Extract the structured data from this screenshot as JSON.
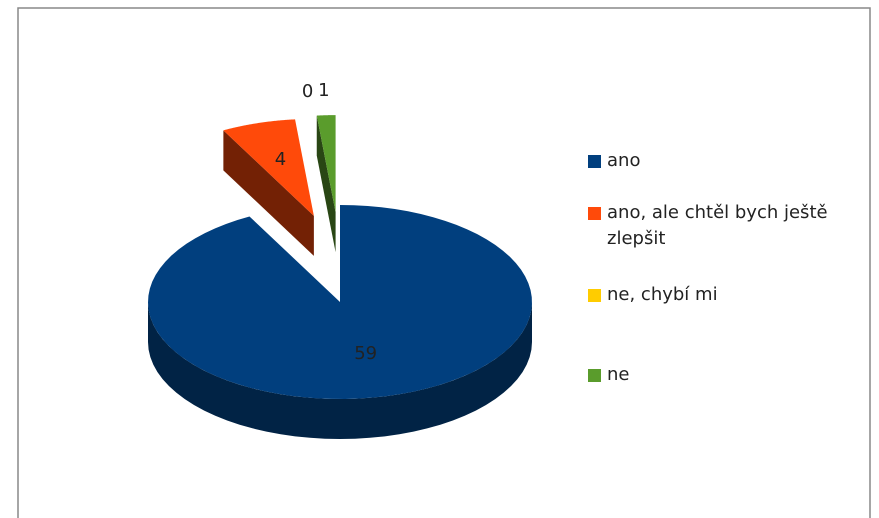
{
  "chart_data": {
    "type": "pie",
    "categories": [
      "ano",
      "ano, ale chtěl bych ještě zlepšit",
      "ne, chybí mi",
      "ne"
    ],
    "values": [
      59,
      4,
      0,
      1
    ],
    "colors": [
      "#013f7e",
      "#ff4a0a",
      "#ffcc00",
      "#5a9c2c"
    ],
    "legend": "right"
  }
}
